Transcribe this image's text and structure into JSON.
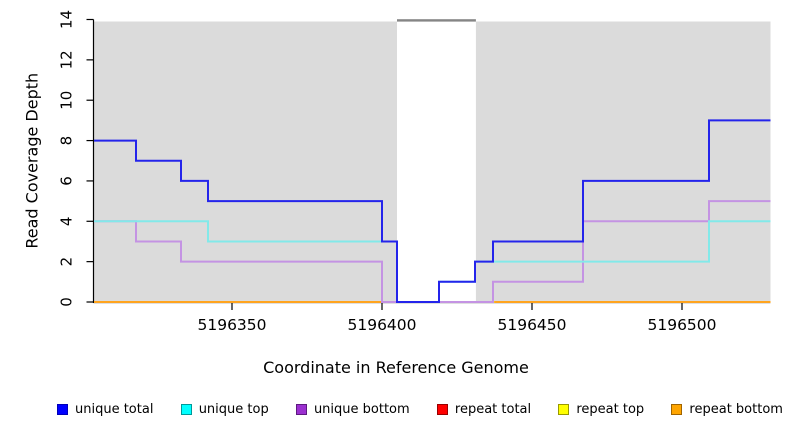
{
  "figure": {
    "x_label": "Coordinate in Reference Genome",
    "y_label": "Read Coverage Depth"
  },
  "chart_data": {
    "type": "line",
    "subtype": "step-coverage",
    "title": "",
    "xlabel": "Coordinate in Reference Genome",
    "ylabel": "Read Coverage Depth",
    "xlim": [
      5196304,
      5196529.5
    ],
    "ylim": [
      0,
      14
    ],
    "x_ticks": [
      5196350,
      5196400,
      5196450,
      5196500
    ],
    "y_ticks": [
      0,
      2,
      4,
      6,
      8,
      10,
      12,
      14
    ],
    "grid": false,
    "legend_position": "bottom",
    "background": {
      "shade_color": "#DBDBDB",
      "unique_shaded_regions": [
        [
          5196304,
          5196405
        ],
        [
          5196431.3,
          5196529.5
        ]
      ],
      "repeat_gap_region": [
        5196405,
        5196431.3
      ],
      "repeat_marker_color": "#858585",
      "repeat_marker_y": 14
    },
    "series": [
      {
        "name": "repeat bottom",
        "color": "#FFA41E",
        "points": [
          [
            5196304,
            0
          ],
          [
            5196529.5,
            0
          ]
        ]
      },
      {
        "name": "repeat total",
        "color": "#D5687C",
        "points": [
          [
            5196400,
            0
          ],
          [
            5196435.5,
            0
          ]
        ]
      },
      {
        "name": "repeat top",
        "color": "#EFDF2E",
        "points": [
          [
            5196435.5,
            0
          ],
          [
            5196437.5,
            0
          ]
        ]
      },
      {
        "name": "unique bottom",
        "color": "#C493E3",
        "points": [
          [
            5196304,
            4
          ],
          [
            5196318,
            4
          ],
          [
            5196318,
            3
          ],
          [
            5196333,
            3
          ],
          [
            5196333,
            2
          ],
          [
            5196400,
            2
          ],
          [
            5196400,
            0
          ],
          [
            5196437,
            0
          ],
          [
            5196437,
            1
          ],
          [
            5196467,
            1
          ],
          [
            5196467,
            4
          ],
          [
            5196509,
            4
          ],
          [
            5196509,
            5
          ],
          [
            5196529.5,
            5
          ]
        ]
      },
      {
        "name": "unique top",
        "color": "#82E9E9",
        "points": [
          [
            5196304,
            4
          ],
          [
            5196342,
            4
          ],
          [
            5196342,
            3
          ],
          [
            5196405,
            3
          ],
          [
            5196405,
            0
          ],
          [
            5196419,
            0
          ],
          [
            5196419,
            1
          ],
          [
            5196431,
            1
          ],
          [
            5196431,
            2
          ],
          [
            5196509,
            2
          ],
          [
            5196509,
            4
          ],
          [
            5196529.5,
            4
          ]
        ]
      },
      {
        "name": "unique total",
        "color": "#2424EB",
        "points": [
          [
            5196304,
            8
          ],
          [
            5196318,
            8
          ],
          [
            5196318,
            7
          ],
          [
            5196333,
            7
          ],
          [
            5196333,
            6
          ],
          [
            5196342,
            6
          ],
          [
            5196342,
            5
          ],
          [
            5196400,
            5
          ],
          [
            5196400,
            3
          ],
          [
            5196405,
            3
          ],
          [
            5196405,
            0
          ],
          [
            5196419,
            0
          ],
          [
            5196419,
            1
          ],
          [
            5196431,
            1
          ],
          [
            5196431,
            2
          ],
          [
            5196437,
            2
          ],
          [
            5196437,
            3
          ],
          [
            5196467,
            3
          ],
          [
            5196467,
            6
          ],
          [
            5196509,
            6
          ],
          [
            5196509,
            9
          ],
          [
            5196529.5,
            9
          ]
        ]
      }
    ]
  },
  "legend": {
    "items": [
      {
        "label": "unique total",
        "fill": "#0000FF",
        "border": "#0000B8"
      },
      {
        "label": "unique top",
        "fill": "#00FFFF",
        "border": "#009999"
      },
      {
        "label": "unique bottom",
        "fill": "#9B30D0",
        "border": "#5E1A80"
      },
      {
        "label": "repeat total",
        "fill": "#FF0000",
        "border": "#990000"
      },
      {
        "label": "repeat top",
        "fill": "#FFFF00",
        "border": "#999900"
      },
      {
        "label": "repeat bottom",
        "fill": "#FFA500",
        "border": "#A06400"
      }
    ]
  }
}
